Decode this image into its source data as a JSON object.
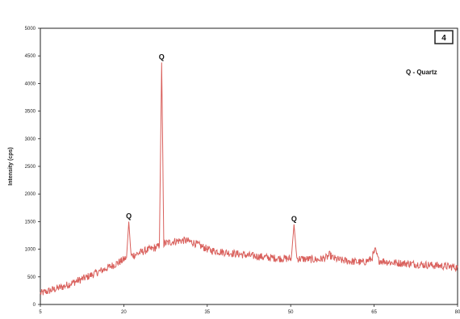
{
  "chart_data": {
    "type": "line",
    "xlabel": "",
    "ylabel": "Intensity (cps)",
    "xlim": [
      5,
      80
    ],
    "ylim": [
      0,
      5000
    ],
    "x_ticks": [
      5,
      20,
      35,
      50,
      65,
      80
    ],
    "y_ticks": [
      0,
      500,
      1000,
      1500,
      2000,
      2500,
      3000,
      3500,
      4000,
      4500,
      5000
    ],
    "grid": false,
    "series_color": "#d9605c",
    "badge": "4",
    "legend_text": "Q - Quartz",
    "series": [
      {
        "points": [
          [
            5,
            200
          ],
          [
            7,
            260
          ],
          [
            9,
            320
          ],
          [
            11,
            400
          ],
          [
            13,
            480
          ],
          [
            15,
            570
          ],
          [
            17,
            660
          ],
          [
            18.5,
            730
          ],
          [
            19.8,
            800
          ],
          [
            20.5,
            850
          ],
          [
            20.9,
            1500
          ],
          [
            21.3,
            880
          ],
          [
            22.5,
            920
          ],
          [
            24,
            980
          ],
          [
            25.5,
            1020
          ],
          [
            26.4,
            1060
          ],
          [
            26.8,
            4380
          ],
          [
            27.2,
            1100
          ],
          [
            28,
            1120
          ],
          [
            29.5,
            1150
          ],
          [
            31,
            1160
          ],
          [
            32.5,
            1120
          ],
          [
            34,
            1050
          ],
          [
            35.5,
            980
          ],
          [
            37,
            960
          ],
          [
            38.5,
            940
          ],
          [
            40,
            920
          ],
          [
            41.5,
            900
          ],
          [
            43,
            880
          ],
          [
            45,
            860
          ],
          [
            47,
            840
          ],
          [
            49,
            830
          ],
          [
            50.1,
            830
          ],
          [
            50.6,
            1450
          ],
          [
            51.1,
            830
          ],
          [
            53,
            820
          ],
          [
            55,
            810
          ],
          [
            56.5,
            850
          ],
          [
            57,
            900
          ],
          [
            57.6,
            840
          ],
          [
            59,
            800
          ],
          [
            61,
            780
          ],
          [
            63,
            760
          ],
          [
            64.5,
            820
          ],
          [
            65.2,
            980
          ],
          [
            65.8,
            800
          ],
          [
            68,
            760
          ],
          [
            71,
            740
          ],
          [
            74,
            720
          ],
          [
            77,
            700
          ],
          [
            80,
            670
          ]
        ]
      }
    ],
    "annotations": [
      {
        "label": "Q",
        "x": 20.9,
        "y": 1500
      },
      {
        "label": "Q",
        "x": 26.8,
        "y": 4380
      },
      {
        "label": "Q",
        "x": 50.6,
        "y": 1450
      }
    ]
  }
}
